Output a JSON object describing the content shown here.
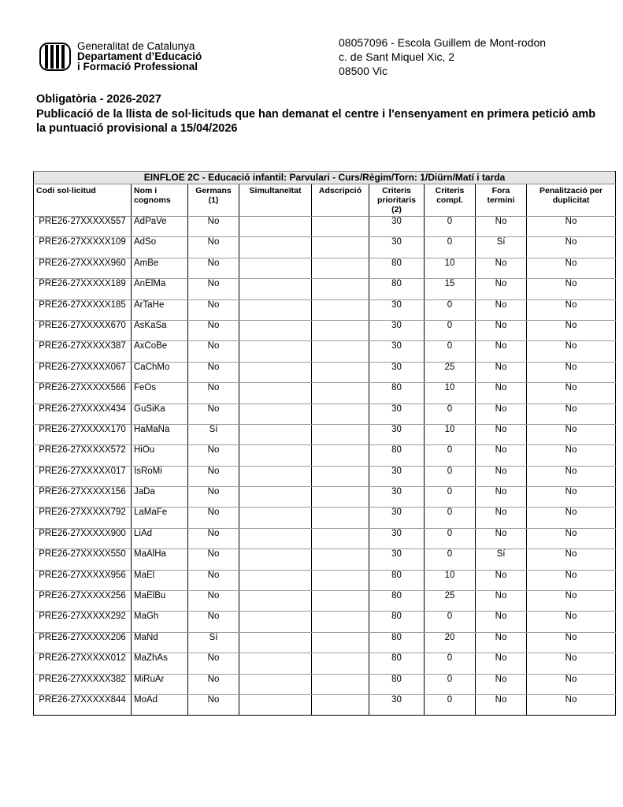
{
  "header": {
    "org_line1": "Generalitat de Catalunya",
    "org_line2": "Departament d’Educació",
    "org_line3": "i Formació Professional",
    "school": "08057096 - Escola Guillem de Mont-rodon",
    "street": "c. de Sant Miquel Xic, 2",
    "city": "08500 Vic"
  },
  "title": {
    "line1": "Obligatòria - 2026-2027",
    "line2": "Publicació de la llista de sol·licituds que han demanat el centre i l'ensenyament en primera petició amb la puntuació provisional a 15/04/2026"
  },
  "table": {
    "caption": "EINFLOE 2C - Educació infantil: Parvulari    - Curs/Règim/Torn:  1/Diürn/Matí i tarda",
    "columns": [
      "Codi sol·licitud",
      "Nom i cognoms",
      "Germans (1)",
      "Simultaneïtat",
      "Adscripció",
      "Criteris prioritaris (2)",
      "Criteris compl.",
      "Fora termini",
      "Penalització per duplicitat"
    ],
    "rows": [
      [
        "PRE26-27XXXXX557",
        "AdPaVe",
        "No",
        "",
        "",
        "30",
        "0",
        "No",
        "No"
      ],
      [
        "PRE26-27XXXXX109",
        "AdSo",
        "No",
        "",
        "",
        "30",
        "0",
        "Sí",
        "No"
      ],
      [
        "PRE26-27XXXXX960",
        "AmBe",
        "No",
        "",
        "",
        "80",
        "10",
        "No",
        "No"
      ],
      [
        "PRE26-27XXXXX189",
        "AnElMa",
        "No",
        "",
        "",
        "80",
        "15",
        "No",
        "No"
      ],
      [
        "PRE26-27XXXXX185",
        "ArTaHe",
        "No",
        "",
        "",
        "30",
        "0",
        "No",
        "No"
      ],
      [
        "PRE26-27XXXXX670",
        "AsKaSa",
        "No",
        "",
        "",
        "30",
        "0",
        "No",
        "No"
      ],
      [
        "PRE26-27XXXXX387",
        "AxCoBe",
        "No",
        "",
        "",
        "30",
        "0",
        "No",
        "No"
      ],
      [
        "PRE26-27XXXXX067",
        "CaChMo",
        "No",
        "",
        "",
        "30",
        "25",
        "No",
        "No"
      ],
      [
        "PRE26-27XXXXX566",
        "FeOs",
        "No",
        "",
        "",
        "80",
        "10",
        "No",
        "No"
      ],
      [
        "PRE26-27XXXXX434",
        "GuSiKa",
        "No",
        "",
        "",
        "30",
        "0",
        "No",
        "No"
      ],
      [
        "PRE26-27XXXXX170",
        "HaMaNa",
        "Sí",
        "",
        "",
        "30",
        "10",
        "No",
        "No"
      ],
      [
        "PRE26-27XXXXX572",
        "HiOu",
        "No",
        "",
        "",
        "80",
        "0",
        "No",
        "No"
      ],
      [
        "PRE26-27XXXXX017",
        "IsRoMi",
        "No",
        "",
        "",
        "30",
        "0",
        "No",
        "No"
      ],
      [
        "PRE26-27XXXXX156",
        "JaDa",
        "No",
        "",
        "",
        "30",
        "0",
        "No",
        "No"
      ],
      [
        "PRE26-27XXXXX792",
        "LaMaFe",
        "No",
        "",
        "",
        "30",
        "0",
        "No",
        "No"
      ],
      [
        "PRE26-27XXXXX900",
        "LiAd",
        "No",
        "",
        "",
        "30",
        "0",
        "No",
        "No"
      ],
      [
        "PRE26-27XXXXX550",
        "MaAlHa",
        "No",
        "",
        "",
        "30",
        "0",
        "Sí",
        "No"
      ],
      [
        "PRE26-27XXXXX956",
        "MaEl",
        "No",
        "",
        "",
        "80",
        "10",
        "No",
        "No"
      ],
      [
        "PRE26-27XXXXX256",
        "MaElBu",
        "No",
        "",
        "",
        "80",
        "25",
        "No",
        "No"
      ],
      [
        "PRE26-27XXXXX292",
        "MaGh",
        "No",
        "",
        "",
        "80",
        "0",
        "No",
        "No"
      ],
      [
        "PRE26-27XXXXX206",
        "MaNd",
        "Sí",
        "",
        "",
        "80",
        "20",
        "No",
        "No"
      ],
      [
        "PRE26-27XXXXX012",
        "MaZhAs",
        "No",
        "",
        "",
        "80",
        "0",
        "No",
        "No"
      ],
      [
        "PRE26-27XXXXX382",
        "MiRuAr",
        "No",
        "",
        "",
        "80",
        "0",
        "No",
        "No"
      ],
      [
        "PRE26-27XXXXX844",
        "MoAd",
        "No",
        "",
        "",
        "30",
        "0",
        "No",
        "No"
      ]
    ]
  }
}
